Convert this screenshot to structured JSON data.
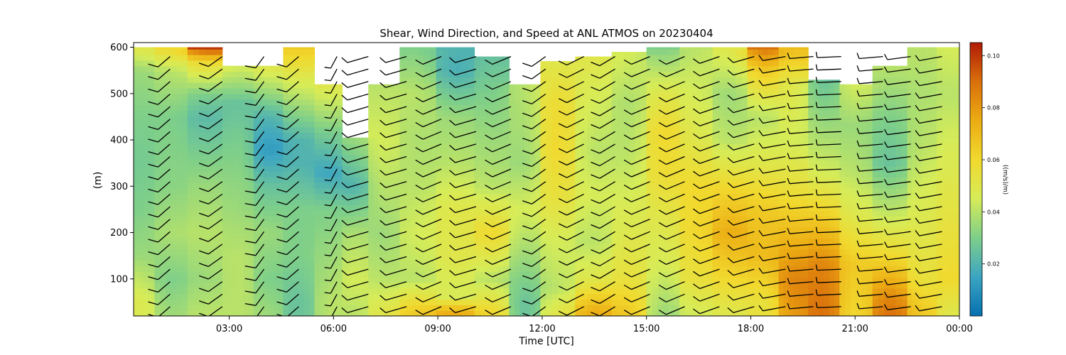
{
  "chart_data": {
    "type": "heatmap",
    "title": "Shear, Wind Direction, and Speed at ANL ATMOS on 20230404",
    "xlabel": "Time [UTC]",
    "ylabel": "(m)",
    "x_ticks": [
      "03:00",
      "06:00",
      "09:00",
      "12:00",
      "15:00",
      "18:00",
      "21:00",
      "00:00"
    ],
    "x_tick_hours": [
      3,
      6,
      9,
      12,
      15,
      18,
      21,
      24
    ],
    "xlim_hours": [
      0.25,
      24
    ],
    "y_ticks": [
      "100",
      "200",
      "300",
      "400",
      "500",
      "600"
    ],
    "y_tick_values": [
      100,
      200,
      300,
      400,
      500,
      600
    ],
    "ylim": [
      20,
      610
    ],
    "colorbar": {
      "label": "((m/s)/m)",
      "ticks": [
        "0.02",
        "0.04",
        "0.06",
        "0.08",
        "0.10"
      ],
      "tick_values": [
        0.02,
        0.04,
        0.06,
        0.08,
        0.1
      ],
      "range": [
        0.0,
        0.105
      ],
      "colormap": [
        "#0570b0",
        "#3ca5c2",
        "#7ecf8a",
        "#d6ec58",
        "#f1d92e",
        "#ecac13",
        "#d9700b",
        "#b01a06"
      ]
    },
    "field_description": "wind shear shown as colored columns with wind barbs",
    "columns": [
      {
        "t": 0.4,
        "top": 600,
        "shear": [
          [
            600,
            0.05
          ],
          [
            550,
            0.035
          ],
          [
            450,
            0.03
          ],
          [
            350,
            0.028
          ],
          [
            250,
            0.03
          ],
          [
            150,
            0.035
          ],
          [
            50,
            0.048
          ]
        ]
      },
      {
        "t": 1.3,
        "top": 600,
        "shear": [
          [
            600,
            0.06
          ],
          [
            550,
            0.04
          ],
          [
            450,
            0.03
          ],
          [
            300,
            0.032
          ],
          [
            200,
            0.038
          ],
          [
            100,
            0.03
          ],
          [
            30,
            0.035
          ]
        ]
      },
      {
        "t": 2.3,
        "top": 600,
        "shear": [
          [
            600,
            0.1
          ],
          [
            570,
            0.06
          ],
          [
            500,
            0.03
          ],
          [
            450,
            0.022
          ],
          [
            300,
            0.035
          ],
          [
            200,
            0.04
          ],
          [
            100,
            0.035
          ],
          [
            30,
            0.04
          ]
        ]
      },
      {
        "t": 3.3,
        "top": 560,
        "shear": [
          [
            560,
            0.045
          ],
          [
            480,
            0.025
          ],
          [
            380,
            0.03
          ],
          [
            250,
            0.035
          ],
          [
            150,
            0.04
          ],
          [
            30,
            0.04
          ]
        ]
      },
      {
        "t": 4.1,
        "top": 560,
        "shear": [
          [
            560,
            0.05
          ],
          [
            450,
            0.02
          ],
          [
            380,
            0.012
          ],
          [
            300,
            0.025
          ],
          [
            200,
            0.035
          ],
          [
            100,
            0.03
          ],
          [
            30,
            0.035
          ]
        ]
      },
      {
        "t": 5.0,
        "top": 600,
        "shear": [
          [
            600,
            0.065
          ],
          [
            520,
            0.045
          ],
          [
            400,
            0.02
          ],
          [
            350,
            0.02
          ],
          [
            250,
            0.03
          ],
          [
            150,
            0.03
          ],
          [
            50,
            0.025
          ]
        ]
      },
      {
        "t": 5.9,
        "top": 520,
        "shear": [
          [
            520,
            0.05
          ],
          [
            420,
            0.03
          ],
          [
            330,
            0.015
          ],
          [
            250,
            0.03
          ],
          [
            150,
            0.035
          ],
          [
            50,
            0.04
          ]
        ]
      },
      {
        "t": 6.6,
        "top": 405,
        "shear": [
          [
            405,
            0.035
          ],
          [
            300,
            0.02
          ],
          [
            200,
            0.038
          ],
          [
            100,
            0.045
          ],
          [
            30,
            0.04
          ]
        ]
      },
      {
        "t": 7.4,
        "top": 520,
        "shear": [
          [
            520,
            0.04
          ],
          [
            400,
            0.045
          ],
          [
            300,
            0.04
          ],
          [
            200,
            0.035
          ],
          [
            100,
            0.04
          ],
          [
            30,
            0.05
          ]
        ]
      },
      {
        "t": 8.4,
        "top": 600,
        "shear": [
          [
            600,
            0.03
          ],
          [
            500,
            0.04
          ],
          [
            400,
            0.038
          ],
          [
            300,
            0.04
          ],
          [
            200,
            0.045
          ],
          [
            100,
            0.04
          ],
          [
            30,
            0.065
          ]
        ]
      },
      {
        "t": 9.5,
        "top": 600,
        "shear": [
          [
            600,
            0.02
          ],
          [
            550,
            0.018
          ],
          [
            450,
            0.035
          ],
          [
            350,
            0.04
          ],
          [
            250,
            0.05
          ],
          [
            150,
            0.05
          ],
          [
            60,
            0.045
          ],
          [
            30,
            0.075
          ]
        ]
      },
      {
        "t": 10.6,
        "top": 580,
        "shear": [
          [
            580,
            0.025
          ],
          [
            500,
            0.03
          ],
          [
            400,
            0.035
          ],
          [
            300,
            0.04
          ],
          [
            200,
            0.06
          ],
          [
            100,
            0.04
          ],
          [
            30,
            0.06
          ]
        ]
      },
      {
        "t": 11.5,
        "top": 520,
        "shear": [
          [
            520,
            0.04
          ],
          [
            450,
            0.038
          ],
          [
            350,
            0.035
          ],
          [
            250,
            0.045
          ],
          [
            150,
            0.035
          ],
          [
            50,
            0.025
          ]
        ]
      },
      {
        "t": 12.4,
        "top": 570,
        "shear": [
          [
            570,
            0.05
          ],
          [
            480,
            0.058
          ],
          [
            380,
            0.06
          ],
          [
            280,
            0.055
          ],
          [
            180,
            0.045
          ],
          [
            80,
            0.04
          ],
          [
            30,
            0.05
          ]
        ]
      },
      {
        "t": 13.5,
        "top": 580,
        "shear": [
          [
            580,
            0.05
          ],
          [
            480,
            0.045
          ],
          [
            380,
            0.04
          ],
          [
            280,
            0.045
          ],
          [
            180,
            0.04
          ],
          [
            100,
            0.05
          ],
          [
            30,
            0.075
          ]
        ]
      },
      {
        "t": 14.5,
        "top": 590,
        "shear": [
          [
            590,
            0.045
          ],
          [
            480,
            0.038
          ],
          [
            380,
            0.04
          ],
          [
            280,
            0.045
          ],
          [
            180,
            0.05
          ],
          [
            100,
            0.055
          ],
          [
            30,
            0.065
          ]
        ]
      },
      {
        "t": 15.5,
        "top": 600,
        "shear": [
          [
            600,
            0.03
          ],
          [
            500,
            0.05
          ],
          [
            420,
            0.06
          ],
          [
            330,
            0.058
          ],
          [
            230,
            0.05
          ],
          [
            130,
            0.045
          ],
          [
            30,
            0.035
          ]
        ]
      },
      {
        "t": 16.4,
        "top": 600,
        "shear": [
          [
            600,
            0.04
          ],
          [
            500,
            0.045
          ],
          [
            400,
            0.05
          ],
          [
            300,
            0.06
          ],
          [
            200,
            0.06
          ],
          [
            100,
            0.055
          ],
          [
            30,
            0.045
          ]
        ]
      },
      {
        "t": 17.4,
        "top": 600,
        "shear": [
          [
            600,
            0.05
          ],
          [
            500,
            0.035
          ],
          [
            400,
            0.04
          ],
          [
            300,
            0.06
          ],
          [
            200,
            0.075
          ],
          [
            100,
            0.06
          ],
          [
            30,
            0.05
          ]
        ]
      },
      {
        "t": 18.4,
        "top": 600,
        "shear": [
          [
            600,
            0.09
          ],
          [
            550,
            0.065
          ],
          [
            450,
            0.04
          ],
          [
            350,
            0.05
          ],
          [
            250,
            0.065
          ],
          [
            150,
            0.07
          ],
          [
            50,
            0.055
          ]
        ]
      },
      {
        "t": 19.2,
        "top": 600,
        "shear": [
          [
            600,
            0.07
          ],
          [
            520,
            0.05
          ],
          [
            400,
            0.045
          ],
          [
            300,
            0.055
          ],
          [
            200,
            0.07
          ],
          [
            100,
            0.085
          ],
          [
            30,
            0.08
          ]
        ]
      },
      {
        "t": 20.1,
        "top": 530,
        "shear": [
          [
            530,
            0.025
          ],
          [
            430,
            0.035
          ],
          [
            330,
            0.045
          ],
          [
            230,
            0.065
          ],
          [
            130,
            0.085
          ],
          [
            30,
            0.09
          ]
        ]
      },
      {
        "t": 21.0,
        "top": 520,
        "shear": [
          [
            520,
            0.045
          ],
          [
            430,
            0.035
          ],
          [
            330,
            0.04
          ],
          [
            230,
            0.05
          ],
          [
            130,
            0.065
          ],
          [
            30,
            0.06
          ]
        ]
      },
      {
        "t": 22.0,
        "top": 560,
        "shear": [
          [
            560,
            0.04
          ],
          [
            450,
            0.03
          ],
          [
            350,
            0.025
          ],
          [
            250,
            0.04
          ],
          [
            150,
            0.06
          ],
          [
            60,
            0.085
          ],
          [
            30,
            0.09
          ]
        ]
      },
      {
        "t": 23.0,
        "top": 600,
        "shear": [
          [
            600,
            0.04
          ],
          [
            500,
            0.038
          ],
          [
            400,
            0.04
          ],
          [
            300,
            0.045
          ],
          [
            200,
            0.05
          ],
          [
            100,
            0.055
          ],
          [
            30,
            0.065
          ]
        ]
      },
      {
        "t": 23.7,
        "top": 600,
        "shear": [
          [
            600,
            0.045
          ],
          [
            500,
            0.04
          ],
          [
            400,
            0.045
          ],
          [
            300,
            0.05
          ],
          [
            200,
            0.055
          ],
          [
            100,
            0.06
          ],
          [
            30,
            0.05
          ]
        ]
      }
    ],
    "barbs": [
      {
        "t": 0.25,
        "dir": 200,
        "spd": 12
      },
      {
        "t": 1.3,
        "dir": 210,
        "spd": 12
      },
      {
        "t": 2.8,
        "dir": 215,
        "spd": 12
      },
      {
        "t": 4.0,
        "dir": 200,
        "spd": 12
      },
      {
        "t": 5.0,
        "dir": 210,
        "spd": 12
      },
      {
        "t": 6.1,
        "dir": 195,
        "spd": 8
      },
      {
        "t": 7.0,
        "dir": 240,
        "spd": 12
      },
      {
        "t": 8.1,
        "dir": 240,
        "spd": 12
      },
      {
        "t": 9.1,
        "dir": 230,
        "spd": 12
      },
      {
        "t": 10.1,
        "dir": 240,
        "spd": 12
      },
      {
        "t": 11.1,
        "dir": 230,
        "spd": 12
      },
      {
        "t": 12.1,
        "dir": 215,
        "spd": 12
      },
      {
        "t": 13.2,
        "dir": 225,
        "spd": 12
      },
      {
        "t": 14.1,
        "dir": 220,
        "spd": 12
      },
      {
        "t": 15.1,
        "dir": 230,
        "spd": 12
      },
      {
        "t": 16.1,
        "dir": 230,
        "spd": 12
      },
      {
        "t": 17.1,
        "dir": 235,
        "spd": 12
      },
      {
        "t": 18.1,
        "dir": 240,
        "spd": 12
      },
      {
        "t": 19.0,
        "dir": 250,
        "spd": 12
      },
      {
        "t": 19.8,
        "dir": 260,
        "spd": 12
      },
      {
        "t": 20.6,
        "dir": 265,
        "spd": 12
      },
      {
        "t": 21.8,
        "dir": 260,
        "spd": 12
      },
      {
        "t": 22.6,
        "dir": 255,
        "spd": 12
      },
      {
        "t": 23.5,
        "dir": 250,
        "spd": 12
      }
    ]
  }
}
